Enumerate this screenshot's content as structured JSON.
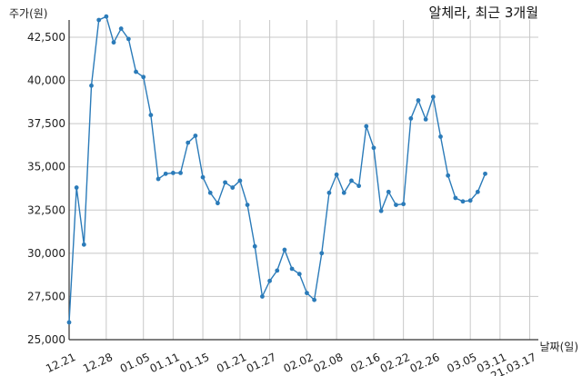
{
  "chart_data": {
    "type": "line",
    "title": "알체라, 최근 3개월",
    "ylabel": "주가(원)",
    "xlabel": "날짜(일)",
    "ylim": [
      25000,
      43500
    ],
    "yticks": [
      25000,
      27500,
      30000,
      32500,
      35000,
      37500,
      40000,
      42500
    ],
    "ytick_labels": [
      "25,000",
      "27,500",
      "30,000",
      "32,500",
      "35,000",
      "37,500",
      "40,000",
      "42,500"
    ],
    "xtick_labels": [
      "12.21",
      "12.28",
      "01.05",
      "01.11",
      "01.15",
      "01.21",
      "01.27",
      "02.02",
      "02.08",
      "02.16",
      "02.22",
      "02.26",
      "03.05",
      "03.11",
      "21.03.17"
    ],
    "xtick_index": [
      0,
      5,
      10,
      14,
      18,
      23,
      27,
      32,
      36,
      41,
      45,
      49,
      54,
      58,
      62
    ],
    "grid": true,
    "series": [
      {
        "color": "#2b7bb9",
        "values": [
          26000,
          33800,
          30500,
          39700,
          43500,
          43700,
          42200,
          43000,
          42400,
          40500,
          40200,
          38000,
          34300,
          34600,
          34650,
          34650,
          36400,
          36800,
          34400,
          33500,
          32900,
          34100,
          33800,
          34200,
          32800,
          30400,
          27500,
          28400,
          29000,
          30200,
          29100,
          28800,
          27700,
          27300,
          30000,
          33500,
          34550,
          33500,
          34200,
          33900,
          37350,
          36100,
          32450,
          33550,
          32800,
          32850,
          37800,
          38850,
          37750,
          39050,
          36750,
          34500,
          33200,
          33000,
          33050,
          33550,
          34600
        ]
      }
    ]
  }
}
